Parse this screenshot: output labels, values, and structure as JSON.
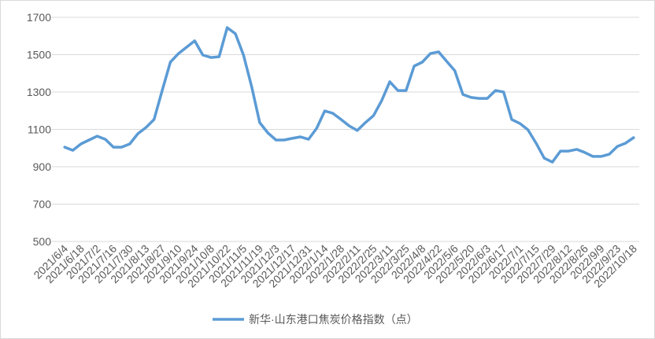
{
  "chart_data": {
    "type": "line",
    "categories": [
      "2021/6/4",
      null,
      "2021/6/18",
      null,
      "2021/7/2",
      null,
      "2021/7/16",
      null,
      "2021/7/30",
      null,
      "2021/8/13",
      null,
      "2021/8/27",
      null,
      "2021/9/10",
      null,
      "2021/9/24",
      null,
      "2021/10/8",
      null,
      "2021/10/22",
      null,
      "2021/11/5",
      null,
      "2021/11/19",
      null,
      "2021/12/3",
      null,
      "2021/12/17",
      null,
      "2021/12/31",
      null,
      "2022/1/14",
      null,
      "2022/1/28",
      null,
      "2022/2/11",
      null,
      "2022/2/25",
      null,
      "2022/3/11",
      null,
      "2022/3/25",
      null,
      "2022/4/8",
      null,
      "2022/4/22",
      null,
      "2022/5/6",
      null,
      "2022/5/20",
      null,
      "2022/6/3",
      null,
      "2022/6/17",
      null,
      "2022/7/1",
      null,
      "2022/7/15",
      null,
      "2022/7/29",
      null,
      "2022/8/12",
      null,
      "2022/8/26",
      null,
      "2022/9/9",
      null,
      "2022/9/23",
      null,
      "2022/10/18"
    ],
    "series": [
      {
        "name": "新华·山东港口焦炭价格指数（点）",
        "color": "#5b9bd5",
        "values": [
          1005,
          988,
          1022,
          1043,
          1064,
          1047,
          1005,
          1005,
          1022,
          1077,
          1110,
          1153,
          1308,
          1460,
          1506,
          1540,
          1574,
          1498,
          1485,
          1489,
          1645,
          1612,
          1498,
          1330,
          1136,
          1081,
          1043,
          1043,
          1052,
          1060,
          1047,
          1106,
          1199,
          1186,
          1153,
          1119,
          1094,
          1136,
          1174,
          1254,
          1355,
          1308,
          1308,
          1439,
          1460,
          1506,
          1515,
          1464,
          1414,
          1287,
          1271,
          1266,
          1266,
          1308,
          1300,
          1153,
          1132,
          1098,
          1026,
          946,
          925,
          984,
          984,
          993,
          976,
          955,
          955,
          967,
          1009,
          1026,
          1056
        ]
      }
    ],
    "ylim": [
      500,
      1700
    ],
    "yticks": [
      500,
      700,
      900,
      1100,
      1300,
      1500,
      1700
    ],
    "grid": true,
    "legend": "bottom"
  }
}
